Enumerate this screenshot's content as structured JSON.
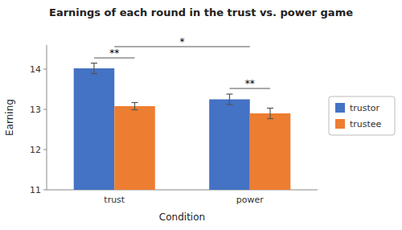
{
  "chart_data": {
    "type": "bar",
    "title": "Earnings of each round in the trust vs. power game",
    "xlabel": "Condition",
    "ylabel": "Earning",
    "categories": [
      "trust",
      "power"
    ],
    "series": [
      {
        "name": "trustor",
        "color": "#4472C4",
        "values": [
          14.02,
          13.25
        ],
        "errors": [
          0.13,
          0.13
        ]
      },
      {
        "name": "trustee",
        "color": "#ED7D31",
        "values": [
          13.08,
          12.9
        ],
        "errors": [
          0.09,
          0.13
        ]
      }
    ],
    "ylim": [
      11,
      14.6
    ],
    "yticks": [
      11,
      12,
      13,
      14
    ],
    "legend": "right",
    "annotations": [
      {
        "text": "**",
        "y": 14.28,
        "category": "trust"
      },
      {
        "text": "**",
        "y": 13.52,
        "category": "power"
      },
      {
        "text": "*",
        "y": 14.56,
        "categories": [
          "trust",
          "power"
        ]
      }
    ]
  }
}
